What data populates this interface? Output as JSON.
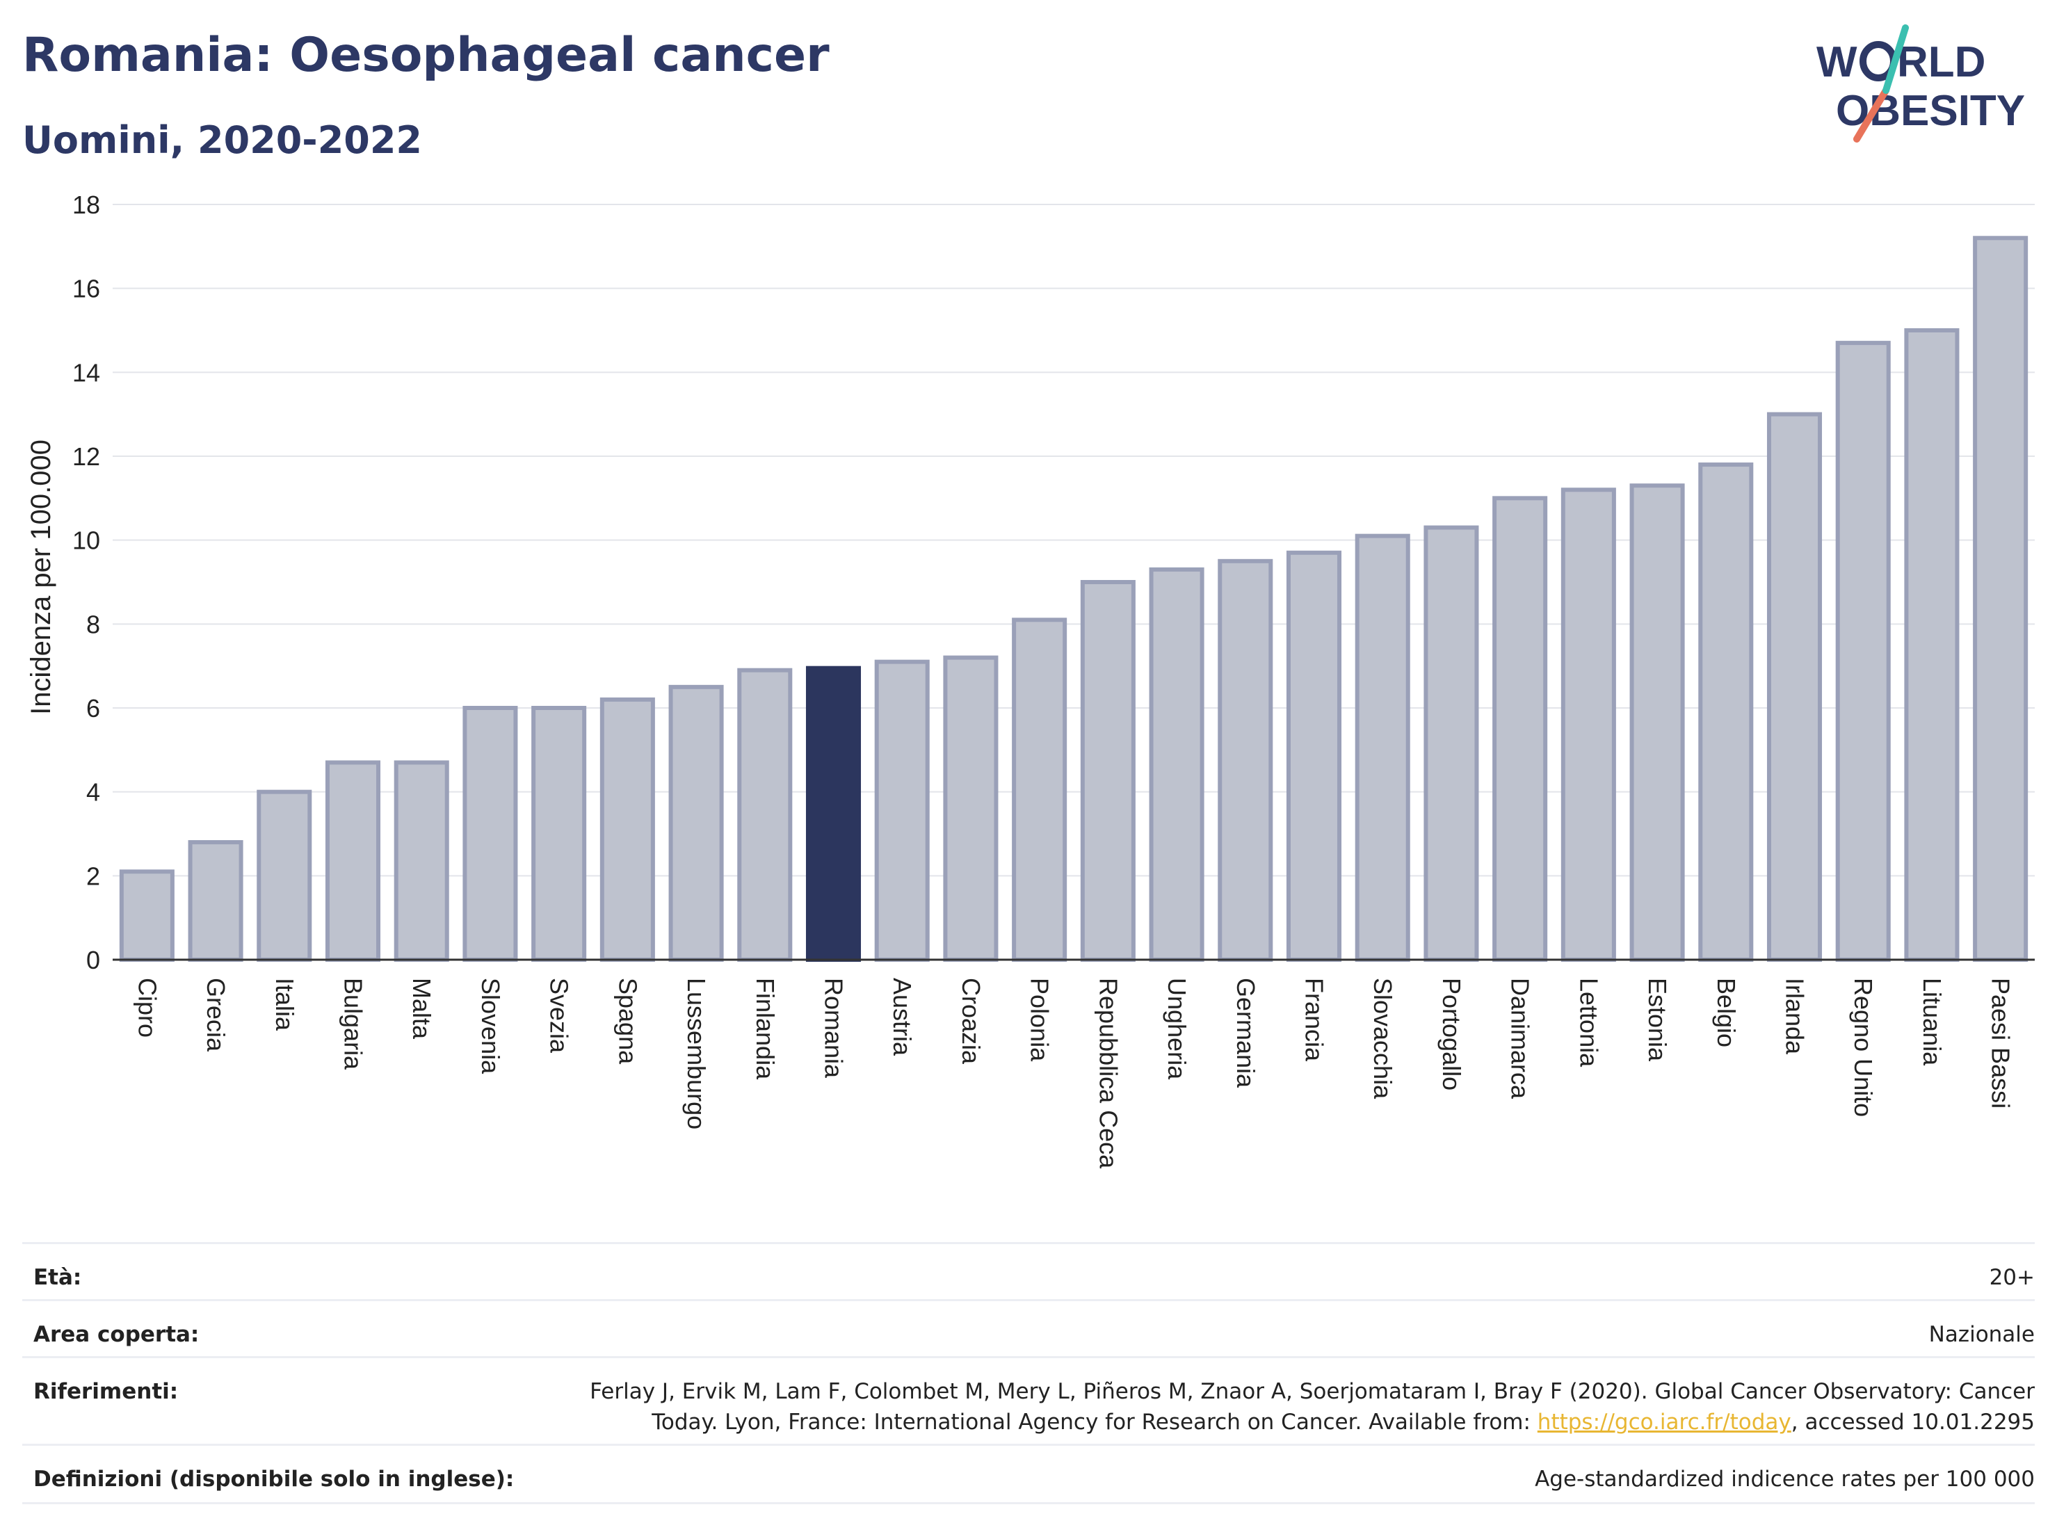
{
  "header": {
    "title": "Romania: Oesophageal cancer",
    "subtitle": "Uomini, 2020-2022"
  },
  "logo": {
    "line1": "W",
    "line1b": "RLD",
    "line2": "OBESITY",
    "icon": "world-obesity-logo"
  },
  "chart_data": {
    "type": "bar",
    "ylabel": "Incidenza per 100.000",
    "ylim": [
      0,
      18
    ],
    "yticks": [
      0,
      2,
      4,
      6,
      8,
      10,
      12,
      14,
      16,
      18
    ],
    "categories": [
      "Cipro",
      "Grecia",
      "Italia",
      "Bulgaria",
      "Malta",
      "Slovenia",
      "Svezia",
      "Spagna",
      "Lussemburgo",
      "Finlandia",
      "Romania",
      "Austria",
      "Croazia",
      "Polonia",
      "Repubblica Ceca",
      "Ungheria",
      "Germania",
      "Francia",
      "Slovacchia",
      "Portogallo",
      "Danimarca",
      "Lettonia",
      "Estonia",
      "Belgio",
      "Irlanda",
      "Regno Unito",
      "Lituania",
      "Paesi Bassi"
    ],
    "values": [
      2.1,
      2.8,
      4.0,
      4.7,
      4.7,
      6.0,
      6.0,
      6.2,
      6.5,
      6.9,
      6.95,
      7.1,
      7.2,
      8.1,
      9.0,
      9.3,
      9.5,
      9.7,
      10.1,
      10.3,
      11.0,
      11.2,
      11.3,
      11.8,
      13.0,
      14.7,
      15.0,
      17.2
    ],
    "highlight": "Romania",
    "grid": true,
    "colors": {
      "bar": "#bec2ce",
      "bar_edge": "#9aa0b8",
      "highlight": "#2c365e",
      "grid": "#e3e5ea",
      "axis": "#333333"
    }
  },
  "info": [
    {
      "label": "Età:",
      "value": "20+"
    },
    {
      "label": "Area coperta:",
      "value": "Nazionale"
    },
    {
      "label": "Riferimenti:",
      "value_line1": "Ferlay J, Ervik M, Lam F, Colombet M, Mery L, Piñeros M, Znaor A, Soerjomataram I, Bray F (2020). Global Cancer Observatory: Cancer",
      "value_line2_pre": "Today. Lyon, France: International Agency for Research on Cancer. Available from: ",
      "link": "https://gco.iarc.fr/today",
      "value_line2_post": ", accessed 10.01.2295"
    },
    {
      "label": "Definizioni (disponibile solo in inglese):",
      "value": "Age-standardized indicence rates per 100 000"
    }
  ]
}
